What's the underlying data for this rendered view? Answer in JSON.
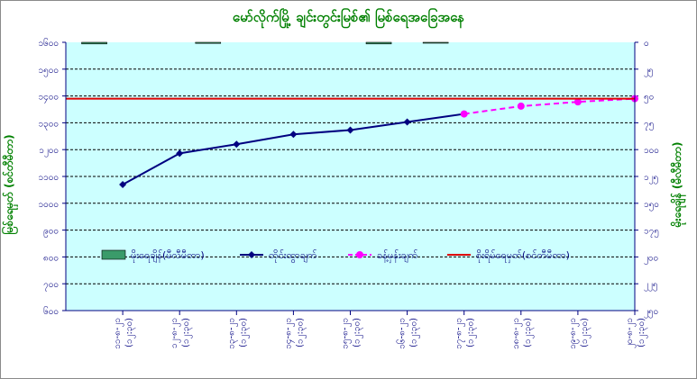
{
  "chart_data": {
    "type": "line",
    "title": "မော်လိုက်မြို့ ချင်းတွင်းမြစ်၏ မြစ်ရေအခြေအနေ",
    "ylabel_left": "မြစ်ရေမှတ် (စင်တီမီတာ)",
    "ylabel_right": "မိုးရေချိန် (မီလီမီတာ)",
    "y_left": {
      "min": 600,
      "max": 1600,
      "step": 100,
      "tick_labels": [
        "၆၀၀",
        "၇၀၀",
        "၈၀၀",
        "၉၀၀",
        "၁၀၀၀",
        "၁၁၀၀",
        "၁၂၀၀",
        "၁၃၀၀",
        "၁၄၀၀",
        "၁၅၀၀",
        "၁၆၀၀"
      ]
    },
    "y_right": {
      "min": 0,
      "max": 250,
      "inverted": true,
      "tick_labels": [
        "၀",
        "၂၅",
        "၅၀",
        "၇၅",
        "၁၀၀",
        "၁၂၅",
        "၁၅၀",
        "၁၇၅",
        "၂၀၀",
        "၂၂၅",
        "၂၅၀"
      ]
    },
    "grid": true,
    "categories": [
      {
        "date": "၁၁-၈-၂၁",
        "time": "(၁၂:၃၀)"
      },
      {
        "date": "၁၂-၈-၂၁",
        "time": "(၁၂:၃၀)"
      },
      {
        "date": "၁၃-၈-၂၁",
        "time": "(၁၂:၃၀)"
      },
      {
        "date": "၁၄-၈-၂၁",
        "time": "(၁၂:၃၀)"
      },
      {
        "date": "၁၅-၈-၂၁",
        "time": "(၁၂:၃၀)"
      },
      {
        "date": "၁၆-၈-၂၁",
        "time": "(၁၂:၃၀)"
      },
      {
        "date": "၁၇-၈-၂၁",
        "time": "(၁၂:၃၀)"
      },
      {
        "date": "၁၈-၈-၂၁",
        "time": "(၁၂:၃၀)"
      },
      {
        "date": "၁၉-၈-၂၁",
        "time": "(၁၂:၃၀)"
      },
      {
        "date": "၂၀-၈-၂၁",
        "time": "(၁၂:၃၀)"
      }
    ],
    "series": [
      {
        "name": "မိုးရေချိန်(မီလီမီတာ)",
        "type": "bar",
        "axis": "right",
        "color": "#3a9b6a",
        "values": [
          1.5,
          0,
          1,
          0,
          0,
          1.5,
          0.5,
          0,
          0,
          0
        ]
      },
      {
        "name": "တိုင်းထွာချက်",
        "type": "line",
        "axis": "left",
        "color": "#000080",
        "marker": "diamond",
        "values": [
          1070,
          1186,
          1220,
          1257,
          1273,
          1303,
          1333,
          null,
          null,
          null
        ]
      },
      {
        "name": "ခန့်မှန်းချက်",
        "type": "line",
        "axis": "left",
        "color": "#ff00ff",
        "dash": true,
        "marker": "circle",
        "values": [
          null,
          null,
          null,
          null,
          null,
          null,
          1333,
          1362,
          1378,
          1390
        ]
      },
      {
        "name": "စိုးရိမ်ရေမှတ်(စင်တီမီတာ)",
        "type": "hline",
        "axis": "left",
        "color": "#e00000",
        "value": 1390
      }
    ],
    "legend": "inside-bottom"
  },
  "colors": {
    "plot_bg": "#ccffff",
    "axis": "#000080",
    "text": "#000080",
    "title": "#008000"
  }
}
